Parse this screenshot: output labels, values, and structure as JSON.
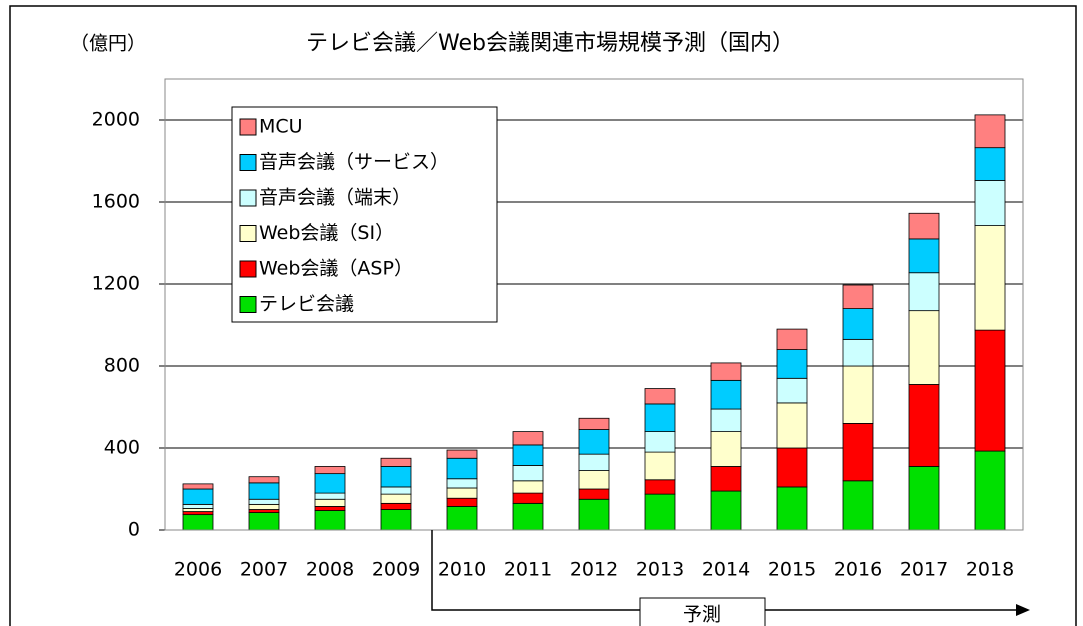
{
  "chart_data": {
    "type": "bar",
    "stacked": true,
    "title": "テレビ会議／Web会議関連市場規模予測（国内）",
    "y_axis_label": "（億円）",
    "annotation": "予測",
    "categories": [
      "2006",
      "2007",
      "2008",
      "2009",
      "2010",
      "2011",
      "2012",
      "2013",
      "2014",
      "2015",
      "2016",
      "2017",
      "2018"
    ],
    "series": [
      {
        "name": "テレビ会議",
        "color": "#00e000",
        "values": [
          75,
          85,
          95,
          100,
          115,
          130,
          150,
          175,
          190,
          210,
          240,
          310,
          385
        ]
      },
      {
        "name": "Web会議（ASP）",
        "color": "#ff0000",
        "values": [
          15,
          15,
          20,
          30,
          40,
          50,
          50,
          70,
          120,
          190,
          280,
          400,
          590
        ]
      },
      {
        "name": "Web会議（SI）",
        "color": "#ffffcc",
        "values": [
          15,
          25,
          35,
          45,
          50,
          60,
          90,
          135,
          170,
          220,
          280,
          360,
          510
        ]
      },
      {
        "name": "音声会議（端末）",
        "color": "#ccffff",
        "values": [
          20,
          25,
          30,
          35,
          45,
          75,
          80,
          100,
          110,
          120,
          130,
          185,
          220
        ]
      },
      {
        "name": "音声会議（サービス）",
        "color": "#00ccff",
        "values": [
          75,
          80,
          95,
          100,
          100,
          100,
          120,
          135,
          140,
          140,
          150,
          165,
          160
        ]
      },
      {
        "name": "MCU",
        "color": "#ff8080",
        "values": [
          25,
          30,
          35,
          40,
          40,
          65,
          55,
          75,
          85,
          100,
          115,
          125,
          160
        ]
      }
    ],
    "ylim": [
      0,
      2200
    ],
    "yticks": [
      0,
      400,
      800,
      1200,
      1600,
      2000
    ],
    "grid": true
  }
}
